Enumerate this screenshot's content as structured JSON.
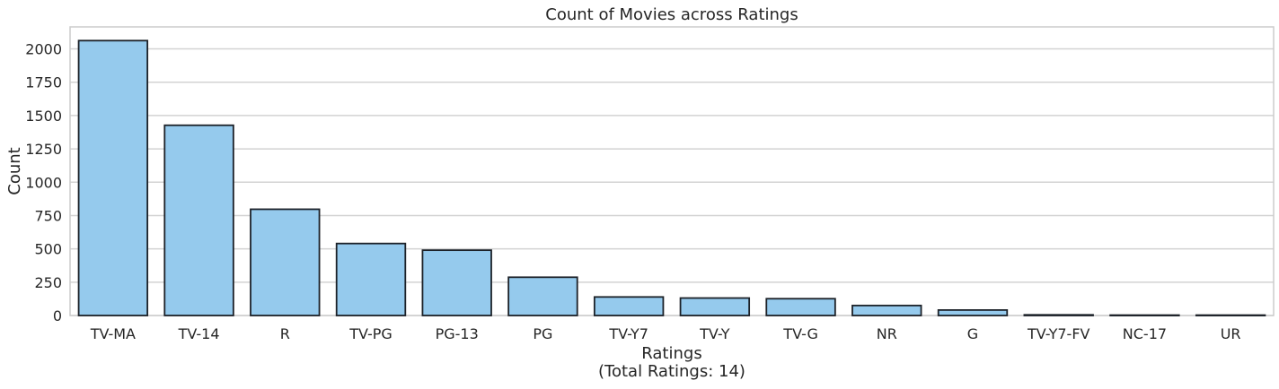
{
  "chart_data": {
    "type": "bar",
    "title": "Count of Movies across Ratings",
    "xlabel": "Ratings",
    "xlabel_sub": "(Total Ratings: 14)",
    "ylabel": "Count",
    "categories": [
      "TV-MA",
      "TV-14",
      "R",
      "TV-PG",
      "PG-13",
      "PG",
      "TV-Y7",
      "TV-Y",
      "TV-G",
      "NR",
      "G",
      "TV-Y7-FV",
      "NC-17",
      "UR"
    ],
    "values": [
      2062,
      1427,
      797,
      540,
      490,
      287,
      139,
      131,
      126,
      75,
      41,
      5,
      3,
      3
    ],
    "ylim": [
      0,
      2165
    ],
    "yticks": [
      0,
      250,
      500,
      750,
      1000,
      1250,
      1500,
      1750,
      2000
    ],
    "grid": true,
    "bar_color": "#95caed",
    "edge_color": "#1c2128",
    "grid_color": "#d3d3d3"
  }
}
